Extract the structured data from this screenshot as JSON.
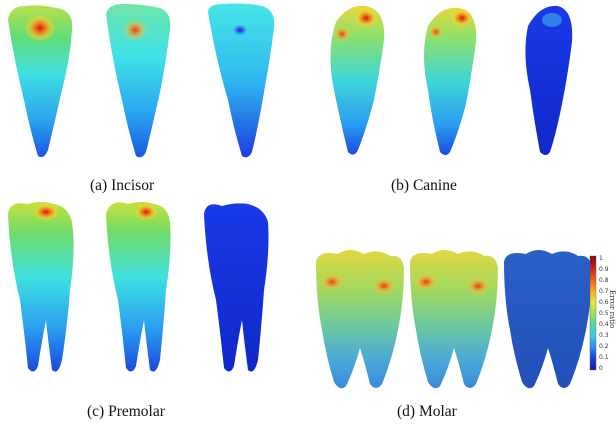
{
  "captions": {
    "a": "(a) Incisor",
    "b": "(b) Canine",
    "c": "(c) Premolar",
    "d": "(d) Molar"
  },
  "colorbar": {
    "label": "Error ratio",
    "ticks": [
      "1",
      "0.9",
      "0.8",
      "0.7",
      "0.6",
      "0.5",
      "0.4",
      "0.3",
      "0.2",
      "0.1",
      "0"
    ],
    "colors": [
      "#7a0a0a",
      "#c8201a",
      "#f05a1a",
      "#f5a623",
      "#e6e63a",
      "#a6e05a",
      "#4fd6a8",
      "#3ec9e8",
      "#2a8cf0",
      "#1a3fe0",
      "#1a1a9a"
    ]
  }
}
